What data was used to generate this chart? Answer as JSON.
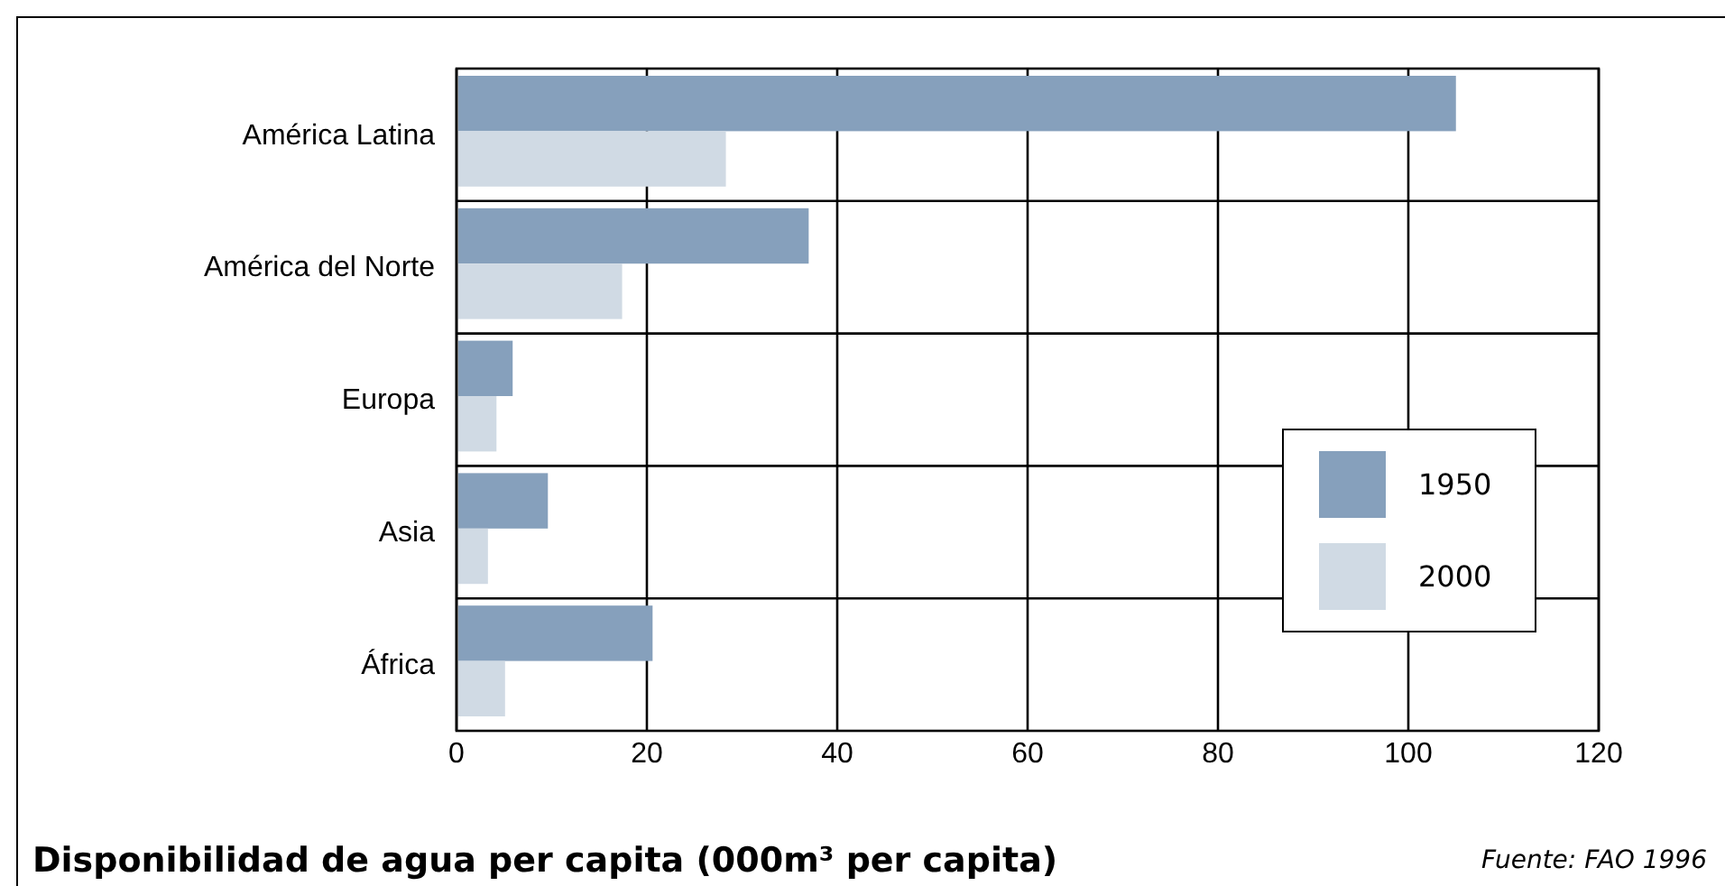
{
  "chart_data": {
    "type": "bar",
    "orientation": "horizontal",
    "title": "Disponibilidad de agua per capita (000m³ per capita)",
    "annotations": [
      "Fuente: FAO 1996"
    ],
    "categories": [
      "América Latina",
      "América del Norte",
      "Europa",
      "Asia",
      "África"
    ],
    "series": [
      {
        "name": "1950",
        "color": "#86a0bc",
        "values": [
          105,
          37,
          5.9,
          9.6,
          20.6
        ]
      },
      {
        "name": "2000",
        "color": "#d0dae4",
        "values": [
          28.3,
          17.4,
          4.2,
          3.3,
          5.1
        ]
      }
    ],
    "xlim": [
      0,
      120
    ],
    "xticks": [
      0,
      20,
      40,
      60,
      80,
      100,
      120
    ],
    "grid": true,
    "legend": "bottom right"
  }
}
